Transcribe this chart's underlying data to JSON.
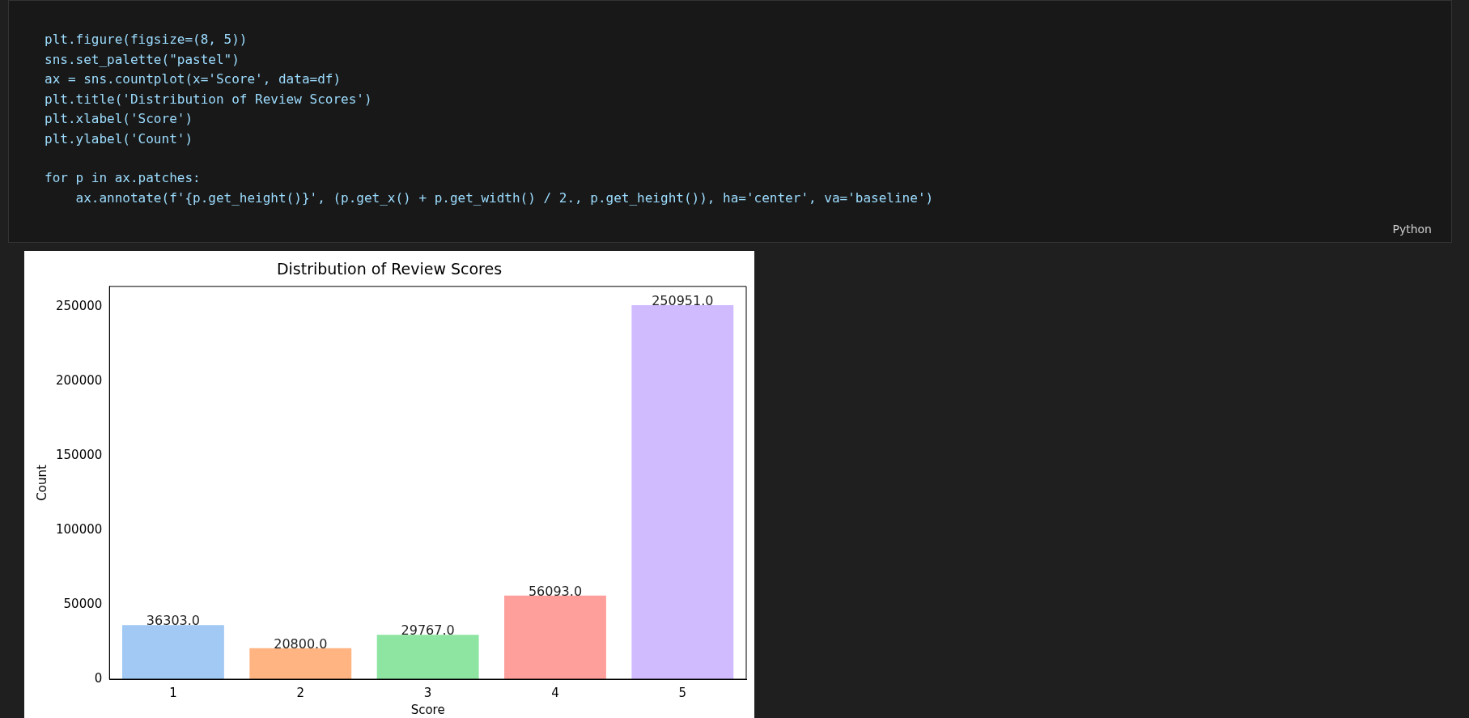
{
  "chart_data": {
    "type": "bar",
    "title": "Distribution of Review Scores",
    "xlabel": "Score",
    "ylabel": "Count",
    "categories": [
      "1",
      "2",
      "3",
      "4",
      "5"
    ],
    "values": [
      36303,
      20800,
      29767,
      56093,
      250951
    ],
    "value_labels": [
      "36303.0",
      "20800.0",
      "29767.0",
      "56093.0",
      "250951.0"
    ],
    "colors": [
      "#a1c9f4",
      "#ffb482",
      "#8de5a1",
      "#ff9f9b",
      "#d0bbff"
    ],
    "ylim": [
      0,
      263500
    ],
    "yticks": [
      0,
      50000,
      100000,
      150000,
      200000,
      250000
    ],
    "grid": false,
    "legend": false,
    "annotations": [
      "plt.figure(figsize=(8, 5))",
      "sns.set_palette(\"pastel\")",
      "ax = sns.countplot(x='Score', data=df)",
      "plt.title('Distribution of Review Scores')",
      "plt.xlabel('Score')",
      "plt.ylabel('Count')",
      "for p in ax.patches:",
      "    ax.annotate(f'{p.get_height()}', (p.get_x() + p.get_width() / 2., p.get_height()), ha='center', va='baseline')",
      "Python"
    ]
  }
}
